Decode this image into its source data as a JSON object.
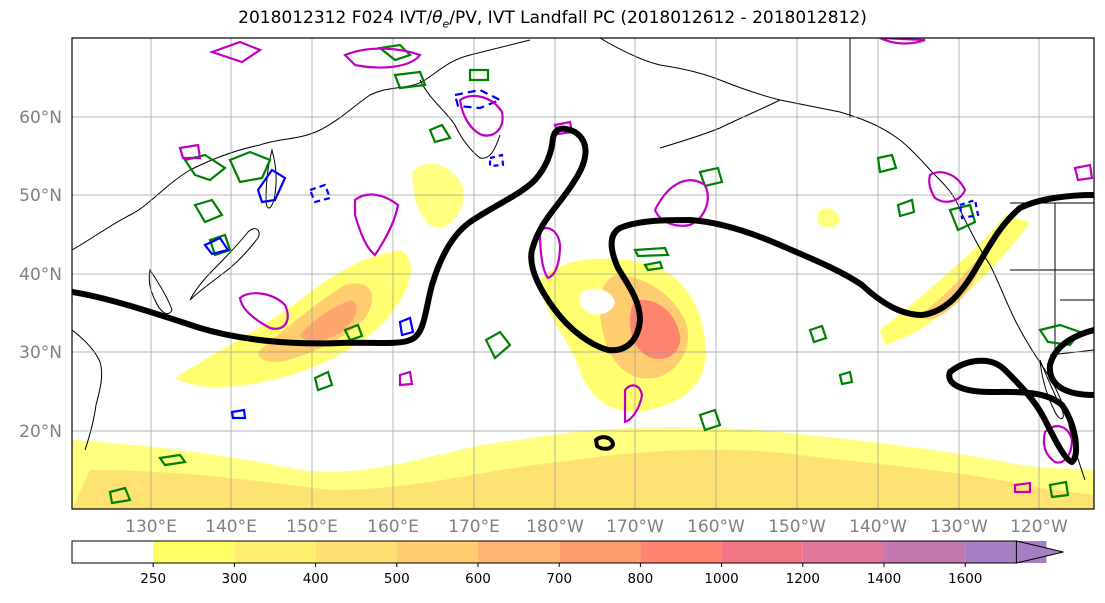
{
  "title": {
    "prefix": "2018012312 F024 IVT/",
    "theta": "θ",
    "theta_sub": "e",
    "suffix": "/PV, IVT Landfall PC (2018012612 - 2018012812)"
  },
  "axes": {
    "lat_labels": [
      "60°N",
      "50°N",
      "40°N",
      "30°N",
      "20°N"
    ],
    "lon_labels": [
      "130°E",
      "140°E",
      "150°E",
      "160°E",
      "170°E",
      "180°W",
      "170°W",
      "160°W",
      "150°W",
      "140°W",
      "130°W",
      "120°W"
    ]
  },
  "colorbar": {
    "labels": [
      "250",
      "300",
      "400",
      "500",
      "600",
      "700",
      "800",
      "1000",
      "1200",
      "1400",
      "1600"
    ],
    "colors": [
      "#ffff66",
      "#fff06e",
      "#ffe070",
      "#ffcc70",
      "#ffb370",
      "#ff9c6e",
      "#ff8470",
      "#f27584",
      "#df7598",
      "#c27ab0",
      "#a67ec4"
    ]
  },
  "legend_colors": {
    "ivt_contour": "#000000",
    "pv_positive": "#c000c0",
    "pv_negative": "#0000ff",
    "theta_e": "#008000"
  }
}
